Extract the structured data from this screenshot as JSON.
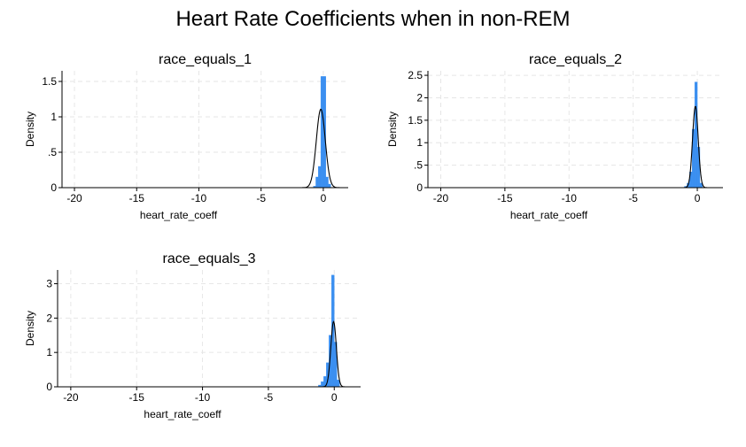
{
  "title": "Heart Rate Coefficients when in non-REM",
  "colors": {
    "bar": "#3b8ff0",
    "curve": "#000000",
    "grid": "#e6e6e6",
    "axis": "#000000"
  },
  "chart_data": [
    {
      "type": "bar",
      "title": "race_equals_1",
      "xlabel": "heart_rate_coeff",
      "ylabel": "Density",
      "xlim": [
        -21,
        2
      ],
      "ylim": [
        0,
        1.65
      ],
      "xticks": [
        -20,
        -15,
        -10,
        -5,
        0
      ],
      "xtick_labels": [
        "-20",
        "-15",
        "-10",
        "-5",
        "0"
      ],
      "yticks": [
        0,
        0.5,
        1,
        1.5
      ],
      "ytick_labels": [
        "0",
        ".5",
        "1",
        "1.5"
      ],
      "grid": true,
      "histogram": {
        "bins": [
          [
            -0.8,
            -0.6
          ],
          [
            -0.6,
            -0.4
          ],
          [
            -0.4,
            -0.2
          ],
          [
            -0.2,
            0.0
          ],
          [
            0.0,
            0.2
          ],
          [
            0.2,
            0.4
          ],
          [
            0.4,
            0.6
          ]
        ],
        "density": [
          0.02,
          0.15,
          0.3,
          1.57,
          1.57,
          0.15,
          0.05
        ]
      },
      "normal_curve": {
        "mean": -0.2,
        "sd": 0.36
      }
    },
    {
      "type": "bar",
      "title": "race_equals_2",
      "xlabel": "heart_rate_coeff",
      "ylabel": "Density",
      "xlim": [
        -21,
        2
      ],
      "ylim": [
        0,
        2.6
      ],
      "xticks": [
        -20,
        -15,
        -10,
        -5,
        0
      ],
      "xtick_labels": [
        "-20",
        "-15",
        "-10",
        "-5",
        "0"
      ],
      "yticks": [
        0,
        0.5,
        1,
        1.5,
        2,
        2.5
      ],
      "ytick_labels": [
        "0",
        ".5",
        "1",
        "1.5",
        "2",
        "2.5"
      ],
      "grid": true,
      "histogram": {
        "bins": [
          [
            -1.0,
            -0.8
          ],
          [
            -0.8,
            -0.6
          ],
          [
            -0.6,
            -0.4
          ],
          [
            -0.4,
            -0.2
          ],
          [
            -0.2,
            0.0
          ],
          [
            0.0,
            0.2
          ],
          [
            0.2,
            0.4
          ]
        ],
        "density": [
          0.03,
          0.1,
          0.35,
          1.3,
          2.35,
          0.9,
          0.1
        ]
      },
      "normal_curve": {
        "mean": -0.15,
        "sd": 0.22
      }
    },
    {
      "type": "bar",
      "title": "race_equals_3",
      "xlabel": "heart_rate_coeff",
      "ylabel": "Density",
      "xlim": [
        -21,
        2
      ],
      "ylim": [
        0,
        3.4
      ],
      "xticks": [
        -20,
        -15,
        -10,
        -5,
        0
      ],
      "xtick_labels": [
        "-20",
        "-15",
        "-10",
        "-5",
        "0"
      ],
      "yticks": [
        0,
        1,
        2,
        3
      ],
      "ytick_labels": [
        "0",
        "1",
        "2",
        "3"
      ],
      "grid": true,
      "histogram": {
        "bins": [
          [
            -1.2,
            -1.0
          ],
          [
            -1.0,
            -0.8
          ],
          [
            -0.8,
            -0.6
          ],
          [
            -0.6,
            -0.4
          ],
          [
            -0.4,
            -0.2
          ],
          [
            -0.2,
            0.0
          ],
          [
            0.0,
            0.2
          ],
          [
            0.2,
            0.4
          ]
        ],
        "density": [
          0.05,
          0.15,
          0.3,
          0.7,
          1.5,
          3.25,
          1.3,
          0.2
        ]
      },
      "normal_curve": {
        "mean": -0.05,
        "sd": 0.21
      }
    }
  ]
}
